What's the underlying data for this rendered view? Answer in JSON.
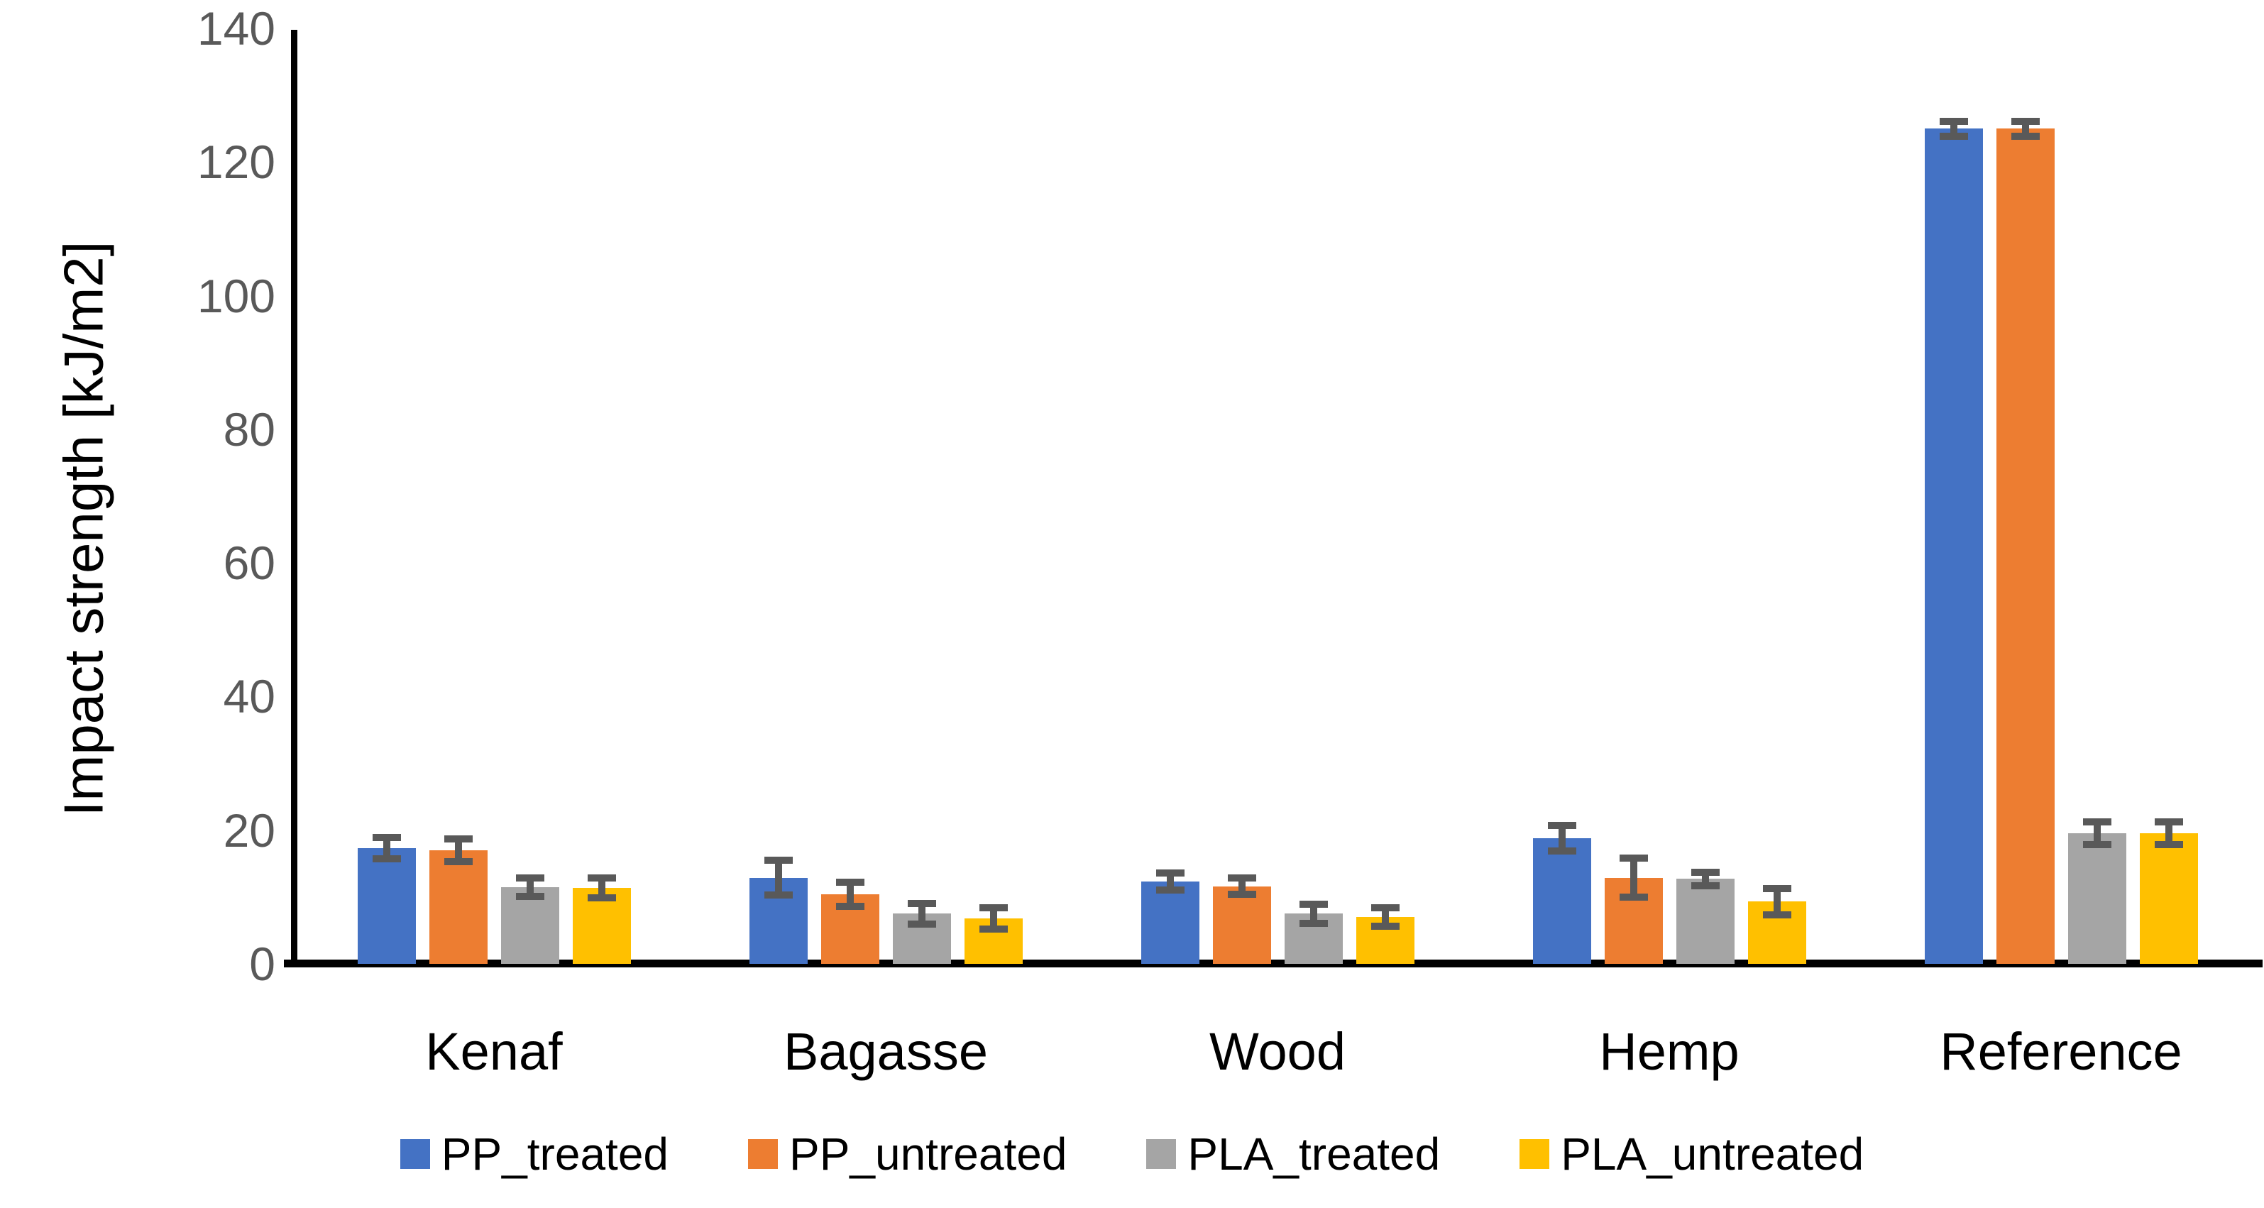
{
  "chart_data": {
    "type": "bar",
    "title": "",
    "xlabel": "",
    "ylabel": "Impact strength [kJ/m2]",
    "ylim": [
      0,
      140
    ],
    "ytick_step": 20,
    "ytick_labels": [
      "0",
      "20",
      "40",
      "60",
      "80",
      "100",
      "120",
      "140"
    ],
    "grid": false,
    "legend_position": "bottom",
    "categories": [
      "Kenaf",
      "Bagasse",
      "Wood",
      "Hemp",
      "Reference"
    ],
    "series": [
      {
        "name": "PP_treated",
        "color": "#4472C4",
        "values": [
          17.3,
          12.9,
          12.3,
          18.8,
          125.0
        ],
        "errors": [
          1.6,
          2.6,
          1.3,
          1.9,
          1.1
        ]
      },
      {
        "name": "PP_untreated",
        "color": "#ED7D31",
        "values": [
          17.0,
          10.4,
          11.6,
          12.9,
          125.0
        ],
        "errors": [
          1.7,
          1.8,
          1.2,
          2.9,
          1.1
        ]
      },
      {
        "name": "PLA_treated",
        "color": "#A5A5A5",
        "values": [
          11.5,
          7.5,
          7.5,
          12.7,
          19.5
        ],
        "errors": [
          1.4,
          1.5,
          1.4,
          1.0,
          1.7
        ]
      },
      {
        "name": "PLA_untreated",
        "color": "#FFC000",
        "values": [
          11.4,
          6.8,
          7.0,
          9.3,
          19.5
        ],
        "errors": [
          1.5,
          1.6,
          1.4,
          2.0,
          1.7
        ]
      }
    ],
    "error_bar_color": "#595959",
    "axis_color": "#000000",
    "ytick_label_color": "#595959",
    "category_label_color": "#000000"
  }
}
